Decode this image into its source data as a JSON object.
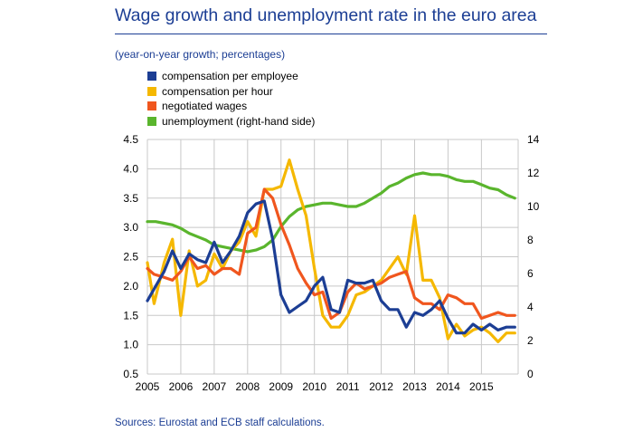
{
  "title": "Wage growth and unemployment rate in the euro area",
  "subtitle": "(year-on-year growth; percentages)",
  "source": "Sources: Eurostat and ECB staff calculations.",
  "chart_data": {
    "type": "line",
    "title": "Wage growth and unemployment rate in the euro area",
    "subtitle": "(year-on-year growth; percentages)",
    "x_ticks": [
      "2005",
      "2006",
      "2007",
      "2008",
      "2009",
      "2010",
      "2011",
      "2012",
      "2013",
      "2014",
      "2015"
    ],
    "xlim": [
      2005.0,
      2016.1
    ],
    "ylim_left": [
      0.5,
      4.5
    ],
    "y_ticks_left": [
      "0.5",
      "1.0",
      "1.5",
      "2.0",
      "2.5",
      "3.0",
      "3.5",
      "4.0",
      "4.5"
    ],
    "ylim_right": [
      0,
      14
    ],
    "y_ticks_right": [
      "0",
      "2",
      "4",
      "6",
      "8",
      "10",
      "12",
      "14"
    ],
    "grid": true,
    "legend_position": "top-left",
    "series": [
      {
        "name": "compensation per employee",
        "color": "#1c3e94",
        "axis": "left",
        "x": [
          2005.0,
          2005.2,
          2005.5,
          2005.75,
          2006.0,
          2006.25,
          2006.5,
          2006.75,
          2007.0,
          2007.25,
          2007.5,
          2007.75,
          2008.0,
          2008.25,
          2008.5,
          2008.75,
          2009.0,
          2009.25,
          2009.5,
          2009.75,
          2010.0,
          2010.25,
          2010.5,
          2010.75,
          2011.0,
          2011.25,
          2011.5,
          2011.75,
          2012.0,
          2012.25,
          2012.5,
          2012.75,
          2013.0,
          2013.25,
          2013.5,
          2013.75,
          2014.0,
          2014.25,
          2014.5,
          2014.75,
          2015.0,
          2015.25,
          2015.5,
          2015.75,
          2016.0
        ],
        "values": [
          1.75,
          1.95,
          2.25,
          2.6,
          2.3,
          2.55,
          2.45,
          2.4,
          2.75,
          2.4,
          2.6,
          2.85,
          3.25,
          3.4,
          3.45,
          2.8,
          1.85,
          1.55,
          1.65,
          1.75,
          2.0,
          2.15,
          1.6,
          1.55,
          2.1,
          2.05,
          2.05,
          2.1,
          1.75,
          1.6,
          1.6,
          1.3,
          1.55,
          1.5,
          1.6,
          1.75,
          1.45,
          1.2,
          1.2,
          1.35,
          1.25,
          1.35,
          1.25,
          1.3,
          1.3
        ]
      },
      {
        "name": "compensation per hour",
        "color": "#f5b800",
        "axis": "left",
        "x": [
          2005.0,
          2005.2,
          2005.5,
          2005.75,
          2006.0,
          2006.25,
          2006.5,
          2006.75,
          2007.0,
          2007.25,
          2007.5,
          2007.75,
          2008.0,
          2008.25,
          2008.5,
          2008.75,
          2009.0,
          2009.25,
          2009.5,
          2009.75,
          2010.0,
          2010.25,
          2010.5,
          2010.75,
          2011.0,
          2011.25,
          2011.5,
          2011.75,
          2012.0,
          2012.25,
          2012.5,
          2012.75,
          2013.0,
          2013.25,
          2013.5,
          2013.75,
          2014.0,
          2014.25,
          2014.5,
          2014.75,
          2015.0,
          2015.25,
          2015.5,
          2015.75,
          2016.0
        ],
        "values": [
          2.4,
          1.7,
          2.4,
          2.8,
          1.5,
          2.6,
          2.0,
          2.1,
          2.55,
          2.3,
          2.6,
          2.75,
          3.1,
          2.85,
          3.65,
          3.65,
          3.7,
          4.15,
          3.65,
          3.2,
          2.3,
          1.5,
          1.3,
          1.3,
          1.5,
          1.85,
          1.9,
          2.0,
          2.1,
          2.3,
          2.5,
          2.2,
          3.2,
          2.1,
          2.1,
          1.8,
          1.1,
          1.35,
          1.15,
          1.25,
          1.3,
          1.2,
          1.05,
          1.2,
          1.2
        ]
      },
      {
        "name": "negotiated wages",
        "color": "#f0561e",
        "axis": "left",
        "x": [
          2005.0,
          2005.2,
          2005.5,
          2005.75,
          2006.0,
          2006.25,
          2006.5,
          2006.75,
          2007.0,
          2007.25,
          2007.5,
          2007.75,
          2008.0,
          2008.25,
          2008.5,
          2008.75,
          2009.0,
          2009.25,
          2009.5,
          2009.75,
          2010.0,
          2010.25,
          2010.5,
          2010.75,
          2011.0,
          2011.25,
          2011.5,
          2011.75,
          2012.0,
          2012.25,
          2012.5,
          2012.75,
          2013.0,
          2013.25,
          2013.5,
          2013.75,
          2014.0,
          2014.25,
          2014.5,
          2014.75,
          2015.0,
          2015.25,
          2015.5,
          2015.75,
          2016.0
        ],
        "values": [
          2.3,
          2.2,
          2.15,
          2.1,
          2.25,
          2.5,
          2.3,
          2.35,
          2.2,
          2.3,
          2.3,
          2.2,
          2.9,
          3.0,
          3.65,
          3.5,
          3.05,
          2.7,
          2.3,
          2.05,
          1.85,
          1.9,
          1.45,
          1.55,
          1.9,
          2.05,
          1.95,
          2.0,
          2.05,
          2.15,
          2.2,
          2.25,
          1.8,
          1.7,
          1.7,
          1.6,
          1.85,
          1.8,
          1.7,
          1.7,
          1.45,
          1.5,
          1.55,
          1.5,
          1.5
        ]
      },
      {
        "name": "unemployment (right-hand side)",
        "color": "#5ab52d",
        "axis": "right",
        "x": [
          2005.0,
          2005.25,
          2005.5,
          2005.75,
          2006.0,
          2006.25,
          2006.5,
          2006.75,
          2007.0,
          2007.25,
          2007.5,
          2007.75,
          2008.0,
          2008.25,
          2008.5,
          2008.75,
          2009.0,
          2009.25,
          2009.5,
          2009.75,
          2010.0,
          2010.25,
          2010.5,
          2010.75,
          2011.0,
          2011.25,
          2011.5,
          2011.75,
          2012.0,
          2012.25,
          2012.5,
          2012.75,
          2013.0,
          2013.25,
          2013.5,
          2013.75,
          2014.0,
          2014.25,
          2014.5,
          2014.75,
          2015.0,
          2015.25,
          2015.5,
          2015.75,
          2016.0
        ],
        "values": [
          9.1,
          9.1,
          9.0,
          8.9,
          8.7,
          8.4,
          8.2,
          8.0,
          7.7,
          7.6,
          7.5,
          7.4,
          7.3,
          7.4,
          7.6,
          8.0,
          8.8,
          9.4,
          9.8,
          10.0,
          10.1,
          10.2,
          10.2,
          10.1,
          10.0,
          10.0,
          10.2,
          10.5,
          10.8,
          11.2,
          11.4,
          11.7,
          11.9,
          12.0,
          11.9,
          11.9,
          11.8,
          11.6,
          11.5,
          11.5,
          11.3,
          11.1,
          11.0,
          10.7,
          10.5
        ]
      }
    ]
  }
}
